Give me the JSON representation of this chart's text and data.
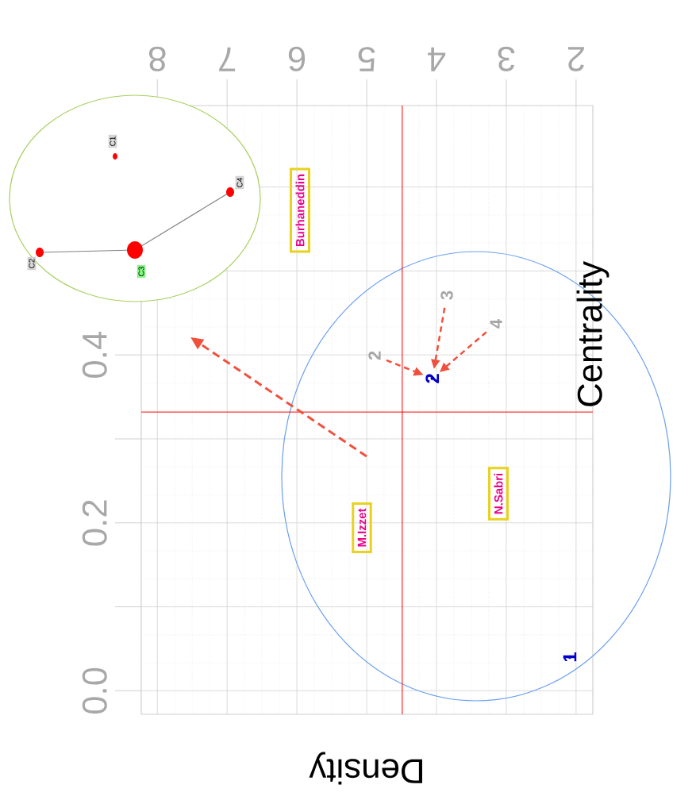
{
  "chart_data": {
    "type": "scatter",
    "xlabel": "Density",
    "ylabel": "Centrality",
    "xlim": [
      8.23,
      1.76
    ],
    "ylim": [
      -0.028,
      0.697
    ],
    "xticks": [
      2,
      3,
      4,
      5,
      6,
      7,
      8
    ],
    "yticks": [
      {
        "value": 0,
        "label": "0.0"
      },
      {
        "value": 0.1,
        "label": null
      },
      {
        "value": 0.2,
        "label": "0.2"
      },
      {
        "value": 0.3,
        "label": null
      },
      {
        "value": 0.4,
        "label": "0.4"
      },
      {
        "value": 0.5,
        "label": null
      },
      {
        "value": 0.6,
        "label": null
      }
    ],
    "grid": true,
    "marker": "circle",
    "series": [
      {
        "color": "#0000cc",
        "x": [
          2.09,
          4.06
        ],
        "values": [
          0.04,
          0.372
        ]
      }
    ],
    "ref_lines": [
      {
        "axis": "x",
        "value": 4.49,
        "color": "#ff0000"
      },
      {
        "axis": "y",
        "value": 0.332,
        "color": "#ff0000"
      }
    ],
    "annotations": [
      {
        "text": "1",
        "x": 2.09,
        "y": 0.04
      },
      {
        "text": "2",
        "x": 4.06,
        "y": 0.372
      },
      "Burhaneddin",
      "M.Izzet",
      "N.Sabri",
      "2",
      "3",
      "4",
      "C1",
      "C3",
      "C4",
      "C2"
    ]
  }
}
